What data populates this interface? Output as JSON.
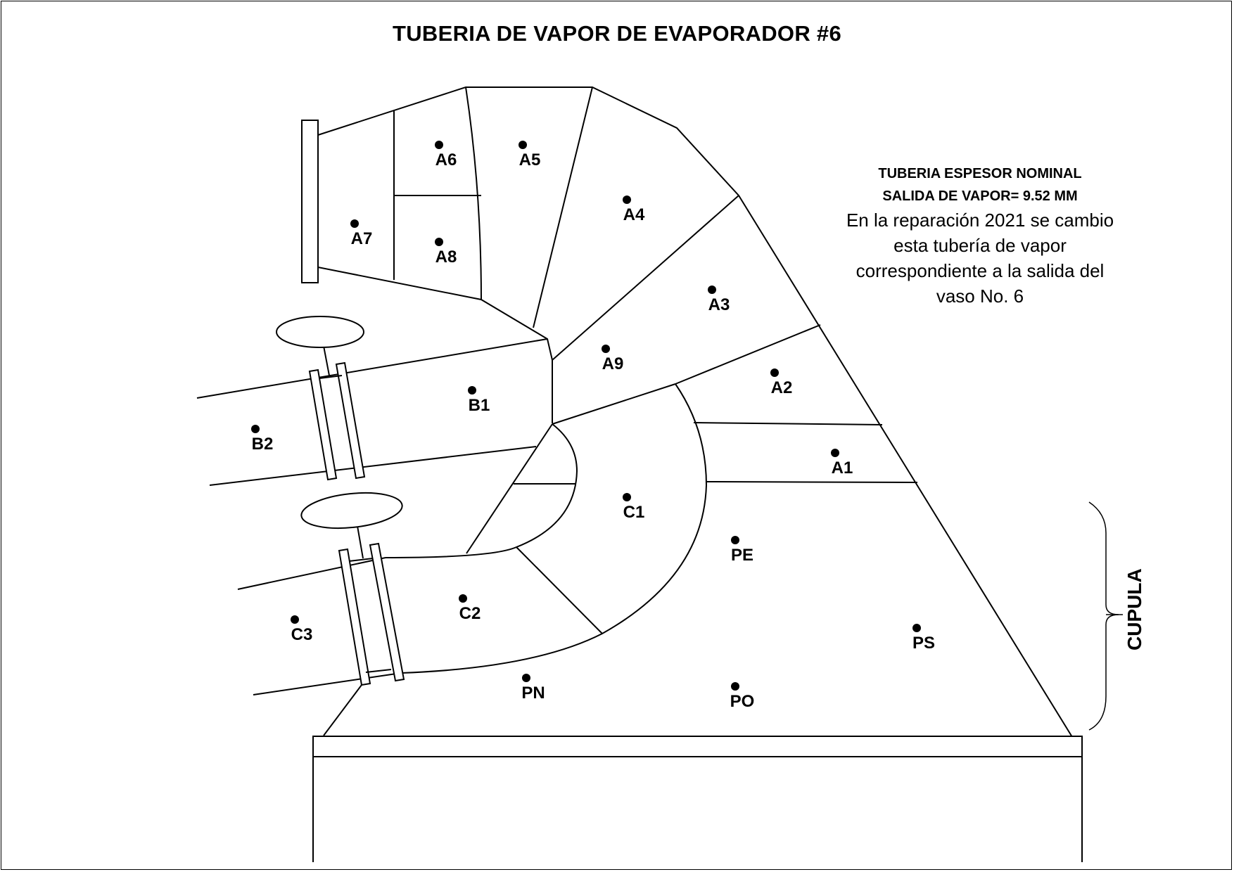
{
  "title": "TUBERIA DE VAPOR DE EVAPORADOR #6",
  "note": {
    "line1": "TUBERIA ESPESOR NOMINAL",
    "line2": "SALIDA DE VAPOR= 9.52 MM",
    "line3": "En la reparación 2021 se cambio",
    "line4": "esta tubería de vapor",
    "line5": "correspondiente a la salida del",
    "line6": "vaso No. 6"
  },
  "side_label": "CUPULA",
  "points": [
    {
      "id": "A1",
      "label": "A1"
    },
    {
      "id": "A2",
      "label": "A2"
    },
    {
      "id": "A3",
      "label": "A3"
    },
    {
      "id": "A4",
      "label": "A4"
    },
    {
      "id": "A5",
      "label": "A5"
    },
    {
      "id": "A6",
      "label": "A6"
    },
    {
      "id": "A7",
      "label": "A7"
    },
    {
      "id": "A8",
      "label": "A8"
    },
    {
      "id": "A9",
      "label": "A9"
    },
    {
      "id": "B1",
      "label": "B1"
    },
    {
      "id": "B2",
      "label": "B2"
    },
    {
      "id": "C1",
      "label": "C1"
    },
    {
      "id": "C2",
      "label": "C2"
    },
    {
      "id": "C3",
      "label": "C3"
    },
    {
      "id": "PE",
      "label": "PE"
    },
    {
      "id": "PS",
      "label": "PS"
    },
    {
      "id": "PN",
      "label": "PN"
    },
    {
      "id": "PO",
      "label": "PO"
    }
  ]
}
